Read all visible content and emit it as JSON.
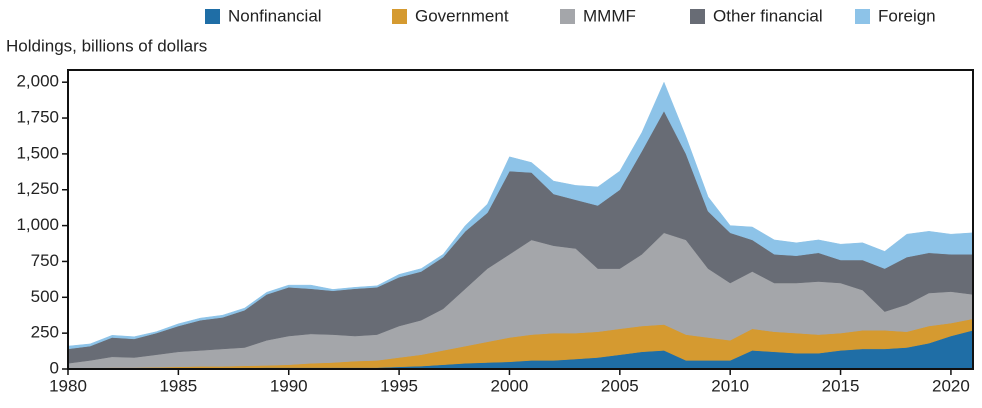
{
  "chart_data": {
    "type": "stacked_area",
    "y_axis_label": "Holdings, billions of dollars",
    "x": [
      1980,
      1981,
      1982,
      1983,
      1984,
      1985,
      1986,
      1987,
      1988,
      1989,
      1990,
      1991,
      1992,
      1993,
      1994,
      1995,
      1996,
      1997,
      1998,
      1999,
      2000,
      2001,
      2002,
      2003,
      2004,
      2005,
      2006,
      2007,
      2008,
      2009,
      2010,
      2011,
      2012,
      2013,
      2014,
      2015,
      2016,
      2017,
      2018,
      2019,
      2020,
      2021
    ],
    "series": [
      {
        "name": "Nonfinancial",
        "color": "#1f6ea6",
        "values": [
          5,
          5,
          5,
          5,
          5,
          5,
          5,
          5,
          8,
          10,
          10,
          10,
          10,
          10,
          10,
          15,
          20,
          30,
          40,
          45,
          50,
          60,
          60,
          70,
          80,
          100,
          120,
          130,
          60,
          60,
          60,
          130,
          120,
          110,
          110,
          130,
          140,
          140,
          150,
          180,
          230,
          270
        ]
      },
      {
        "name": "Government",
        "color": "#d59a30",
        "values": [
          0,
          3,
          5,
          5,
          7,
          10,
          13,
          13,
          14,
          15,
          20,
          30,
          35,
          45,
          50,
          65,
          80,
          100,
          120,
          145,
          170,
          180,
          190,
          180,
          180,
          180,
          180,
          180,
          180,
          160,
          140,
          150,
          140,
          140,
          130,
          120,
          130,
          130,
          110,
          120,
          90,
          80
        ]
      },
      {
        "name": "MMMF",
        "color": "#a4a6aa",
        "values": [
          35,
          52,
          75,
          70,
          88,
          105,
          112,
          122,
          128,
          175,
          200,
          205,
          195,
          175,
          180,
          220,
          240,
          290,
          400,
          510,
          580,
          660,
          610,
          590,
          440,
          420,
          500,
          640,
          660,
          480,
          400,
          400,
          340,
          350,
          370,
          350,
          280,
          130,
          190,
          230,
          220,
          170
        ]
      },
      {
        "name": "Other financial",
        "color": "#686c75",
        "values": [
          100,
          100,
          135,
          130,
          150,
          180,
          210,
          220,
          260,
          320,
          340,
          315,
          305,
          330,
          330,
          340,
          340,
          360,
          400,
          390,
          580,
          470,
          360,
          340,
          440,
          550,
          720,
          850,
          600,
          400,
          350,
          220,
          200,
          190,
          200,
          160,
          210,
          300,
          330,
          280,
          260,
          280
        ]
      },
      {
        "name": "Foreign",
        "color": "#8dc3e8",
        "values": [
          20,
          15,
          15,
          15,
          10,
          15,
          15,
          15,
          15,
          15,
          15,
          25,
          10,
          10,
          10,
          20,
          20,
          20,
          40,
          60,
          100,
          70,
          90,
          100,
          130,
          130,
          130,
          200,
          120,
          100,
          50,
          90,
          100,
          90,
          90,
          110,
          120,
          120,
          160,
          150,
          140,
          150
        ]
      }
    ],
    "xlim": [
      1980,
      2021
    ],
    "xticks": [
      1980,
      1985,
      1990,
      1995,
      2000,
      2005,
      2010,
      2015,
      2020
    ],
    "ylim": [
      0,
      2085
    ],
    "yticks": [
      0,
      250,
      500,
      750,
      {
        "value": 1000,
        "label": "1,000"
      },
      {
        "value": 1250,
        "label": "1,250"
      },
      {
        "value": 1500,
        "label": "1,500"
      },
      {
        "value": 1750,
        "label": "1,750"
      },
      {
        "value": 2000,
        "label": "2,000"
      }
    ],
    "legend": "top-right"
  }
}
